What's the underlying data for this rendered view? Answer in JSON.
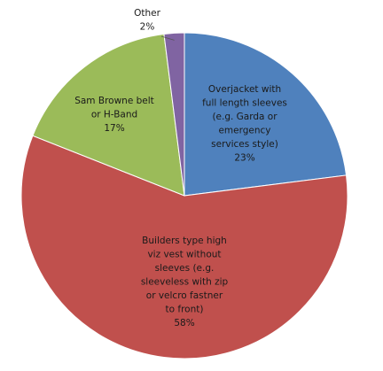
{
  "chart_data": {
    "type": "pie",
    "title": "",
    "legend": "none",
    "slices": [
      {
        "name": "Overjacket with full length sleeves (e.g. Garda or emergency services style)",
        "label_lines": [
          "Overjacket with",
          "full length sleeves",
          "(e.g. Garda or",
          "emergency",
          "services style)",
          "23%"
        ],
        "value": 23,
        "color": "#4f81bd"
      },
      {
        "name": "Builders type high viz vest without sleeves (e.g. sleeveless with zip or velcro fastner to front)",
        "label_lines": [
          "Builders type high",
          "viz vest without",
          "sleeves (e.g.",
          "sleeveless with zip",
          "or velcro fastner",
          "to front)",
          "58%"
        ],
        "value": 58,
        "color": "#c0504d"
      },
      {
        "name": "Sam Browne belt or H-Band",
        "label_lines": [
          "Sam Browne belt",
          "or H-Band",
          "17%"
        ],
        "value": 17,
        "color": "#9bbb59"
      },
      {
        "name": "Other",
        "label_lines": [
          "Other",
          "2%"
        ],
        "value": 2,
        "color": "#8064a2"
      }
    ]
  }
}
